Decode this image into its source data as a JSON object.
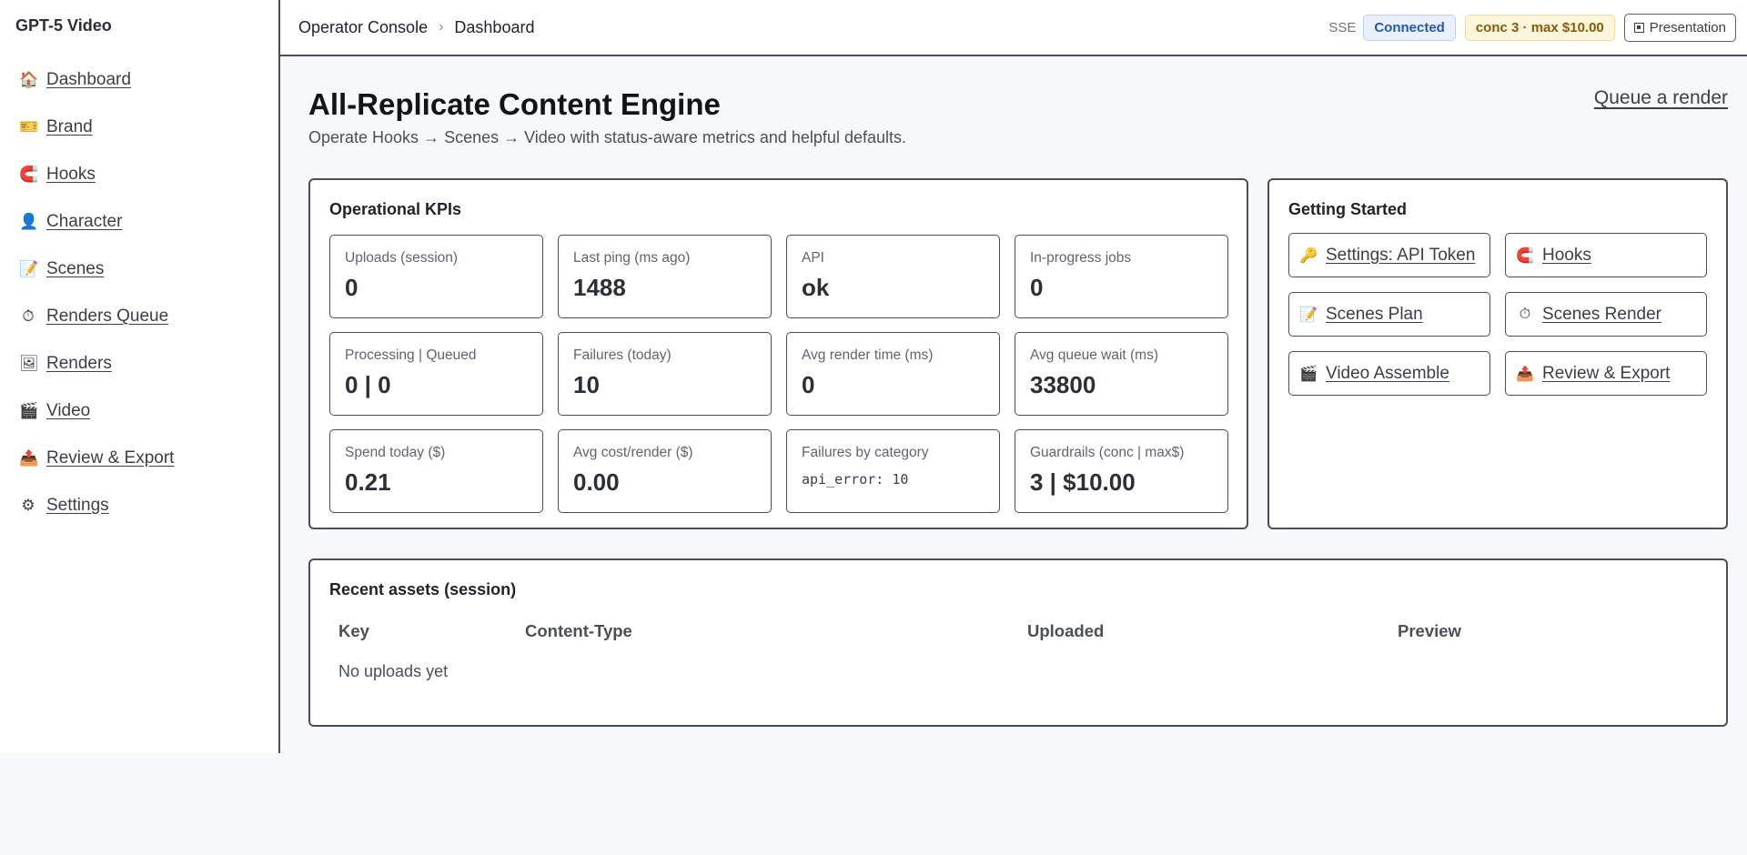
{
  "app": {
    "title": "GPT-5 Video"
  },
  "sidebar": {
    "items": [
      {
        "icon": "house-icon",
        "glyph": "🏠",
        "label": "Dashboard"
      },
      {
        "icon": "ticket-icon",
        "glyph": "🎫",
        "label": "Brand"
      },
      {
        "icon": "magnet-icon",
        "glyph": "🧲",
        "label": "Hooks"
      },
      {
        "icon": "person-icon",
        "glyph": "👤",
        "label": "Character"
      },
      {
        "icon": "memo-icon",
        "glyph": "📝",
        "label": "Scenes"
      },
      {
        "icon": "stopwatch-icon",
        "glyph": "⏱",
        "label": "Renders Queue"
      },
      {
        "icon": "picture-icon",
        "glyph": "🖼",
        "label": "Renders"
      },
      {
        "icon": "clapper-icon",
        "glyph": "🎬",
        "label": "Video"
      },
      {
        "icon": "outbox-icon",
        "glyph": "📤",
        "label": "Review & Export"
      },
      {
        "icon": "gear-icon",
        "glyph": "⚙",
        "label": "Settings"
      }
    ]
  },
  "header": {
    "breadcrumb": [
      "Operator Console",
      "Dashboard"
    ],
    "breadcrumb_sep": "›",
    "sse_label": "SSE",
    "sse_status": "Connected",
    "conc_badge": "conc 3 · max $10.00",
    "presentation_label": "Presentation"
  },
  "page": {
    "title": "All-Replicate Content Engine",
    "subtitle": "Operate Hooks → Scenes → Video with status-aware metrics and helpful defaults.",
    "queue_link": "Queue a render"
  },
  "kpis": {
    "title": "Operational KPIs",
    "items": [
      {
        "label": "Uploads (session)",
        "value": "0"
      },
      {
        "label": "Last ping (ms ago)",
        "value": "1488"
      },
      {
        "label": "API",
        "value": "ok"
      },
      {
        "label": "In-progress jobs",
        "value": "0"
      },
      {
        "label": "Processing | Queued",
        "value": "0 | 0"
      },
      {
        "label": "Failures (today)",
        "value": "10"
      },
      {
        "label": "Avg render time (ms)",
        "value": "0"
      },
      {
        "label": "Avg queue wait (ms)",
        "value": "33800"
      },
      {
        "label": "Spend today ($)",
        "value": "0.21"
      },
      {
        "label": "Avg cost/render ($)",
        "value": "0.00"
      },
      {
        "label": "Failures by category",
        "value": "api_error: 10",
        "mono": true
      },
      {
        "label": "Guardrails (conc | max$)",
        "value": "3 | $10.00"
      }
    ]
  },
  "getting_started": {
    "title": "Getting Started",
    "items": [
      {
        "icon": "key-icon",
        "glyph": "🔑",
        "label": "Settings: API Token"
      },
      {
        "icon": "magnet-icon",
        "glyph": "🧲",
        "label": "Hooks"
      },
      {
        "icon": "memo-icon",
        "glyph": "📝",
        "label": "Scenes Plan"
      },
      {
        "icon": "stopwatch-icon",
        "glyph": "⏱",
        "label": "Scenes Render"
      },
      {
        "icon": "clapper-icon",
        "glyph": "🎬",
        "label": "Video Assemble"
      },
      {
        "icon": "outbox-icon",
        "glyph": "📤",
        "label": "Review & Export"
      }
    ]
  },
  "assets": {
    "title": "Recent assets (session)",
    "columns": [
      "Key",
      "Content-Type",
      "Uploaded",
      "Preview"
    ],
    "empty_text": "No uploads yet"
  }
}
